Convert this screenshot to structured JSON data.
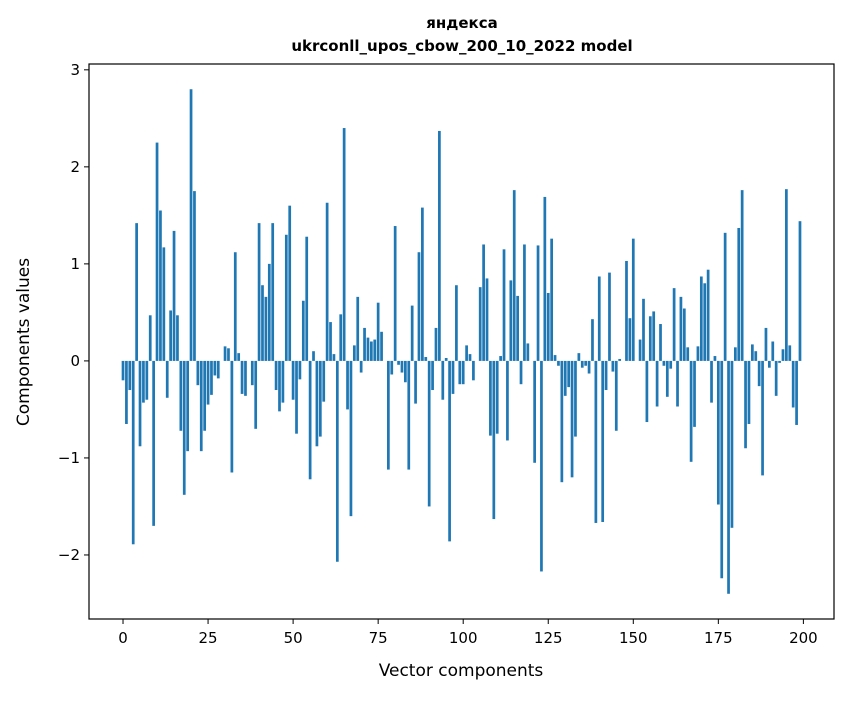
{
  "chart_data": {
    "type": "bar",
    "title": "яндекса",
    "subtitle": "ukrconll_upos_cbow_200_10_2022 model",
    "xlabel": "Vector components",
    "ylabel": "Components values",
    "xlim": [
      -10,
      209
    ],
    "ylim": [
      -2.66,
      3.06
    ],
    "xticks": [
      0,
      25,
      50,
      75,
      100,
      125,
      150,
      175,
      200
    ],
    "yticks": [
      -2,
      -1,
      0,
      1,
      2,
      3
    ],
    "xtick_labels": [
      "0",
      "25",
      "50",
      "75",
      "100",
      "125",
      "150",
      "175",
      "200"
    ],
    "ytick_labels": [
      "−2",
      "−1",
      "0",
      "1",
      "2",
      "3"
    ],
    "grid": false,
    "legend": "none",
    "bar_color": "#1f77b4",
    "x": [
      0,
      1,
      2,
      3,
      4,
      5,
      6,
      7,
      8,
      9,
      10,
      11,
      12,
      13,
      14,
      15,
      16,
      17,
      18,
      19,
      20,
      21,
      22,
      23,
      24,
      25,
      26,
      27,
      28,
      29,
      30,
      31,
      32,
      33,
      34,
      35,
      36,
      37,
      38,
      39,
      40,
      41,
      42,
      43,
      44,
      45,
      46,
      47,
      48,
      49,
      50,
      51,
      52,
      53,
      54,
      55,
      56,
      57,
      58,
      59,
      60,
      61,
      62,
      63,
      64,
      65,
      66,
      67,
      68,
      69,
      70,
      71,
      72,
      73,
      74,
      75,
      76,
      77,
      78,
      79,
      80,
      81,
      82,
      83,
      84,
      85,
      86,
      87,
      88,
      89,
      90,
      91,
      92,
      93,
      94,
      95,
      96,
      97,
      98,
      99,
      100,
      101,
      102,
      103,
      104,
      105,
      106,
      107,
      108,
      109,
      110,
      111,
      112,
      113,
      114,
      115,
      116,
      117,
      118,
      119,
      120,
      121,
      122,
      123,
      124,
      125,
      126,
      127,
      128,
      129,
      130,
      131,
      132,
      133,
      134,
      135,
      136,
      137,
      138,
      139,
      140,
      141,
      142,
      143,
      144,
      145,
      146,
      147,
      148,
      149,
      150,
      151,
      152,
      153,
      154,
      155,
      156,
      157,
      158,
      159,
      160,
      161,
      162,
      163,
      164,
      165,
      166,
      167,
      168,
      169,
      170,
      171,
      172,
      173,
      174,
      175,
      176,
      177,
      178,
      179,
      180,
      181,
      182,
      183,
      184,
      185,
      186,
      187,
      188,
      189,
      190,
      191,
      192,
      193,
      194,
      195,
      196,
      197,
      198,
      199
    ],
    "values": [
      -0.2,
      -0.65,
      -0.3,
      -1.89,
      1.42,
      -0.88,
      -0.43,
      -0.4,
      0.47,
      -1.7,
      2.25,
      1.55,
      1.17,
      -0.38,
      0.52,
      1.34,
      0.47,
      -0.72,
      -1.38,
      -0.93,
      2.8,
      1.75,
      -0.25,
      -0.93,
      -0.72,
      -0.45,
      -0.35,
      -0.15,
      -0.18,
      0.0,
      0.15,
      0.13,
      -1.15,
      1.12,
      0.08,
      -0.34,
      -0.36,
      0.0,
      -0.25,
      -0.7,
      1.42,
      0.78,
      0.66,
      1.0,
      1.42,
      -0.3,
      -0.52,
      -0.43,
      1.3,
      1.6,
      -0.4,
      -0.75,
      -0.19,
      0.62,
      1.28,
      -1.22,
      0.1,
      -0.88,
      -0.78,
      -0.42,
      1.63,
      0.4,
      0.07,
      -2.07,
      0.48,
      2.4,
      -0.5,
      -1.6,
      0.16,
      0.66,
      -0.12,
      0.34,
      0.24,
      0.2,
      0.22,
      0.6,
      0.3,
      0.0,
      -1.12,
      -0.14,
      1.39,
      -0.04,
      -0.12,
      -0.22,
      -1.12,
      0.57,
      -0.44,
      1.12,
      1.58,
      0.04,
      -1.5,
      -0.3,
      0.34,
      2.37,
      -0.4,
      0.03,
      -1.86,
      -0.34,
      0.78,
      -0.24,
      -0.24,
      0.16,
      0.07,
      -0.2,
      0.0,
      0.76,
      1.2,
      0.85,
      -0.77,
      -1.63,
      -0.75,
      0.05,
      1.15,
      -0.82,
      0.83,
      1.76,
      0.67,
      -0.24,
      1.2,
      0.18,
      0.0,
      -1.05,
      1.19,
      -2.17,
      1.69,
      0.7,
      1.26,
      0.06,
      -0.05,
      -1.25,
      -0.36,
      -0.27,
      -1.2,
      -0.78,
      0.08,
      -0.07,
      -0.05,
      -0.13,
      0.43,
      -1.67,
      0.87,
      -1.66,
      -0.3,
      0.91,
      -0.11,
      -0.72,
      0.02,
      0.0,
      1.03,
      0.44,
      1.26,
      0.0,
      0.22,
      0.64,
      -0.63,
      0.46,
      0.51,
      -0.47,
      0.38,
      -0.05,
      -0.37,
      -0.08,
      0.75,
      -0.47,
      0.66,
      0.54,
      0.14,
      -1.04,
      -0.68,
      0.15,
      0.87,
      0.8,
      0.94,
      -0.43,
      0.05,
      -1.48,
      -2.24,
      1.32,
      -2.4,
      -1.72,
      0.14,
      1.37,
      1.76,
      -0.9,
      -0.65,
      0.17,
      0.1,
      -0.26,
      -1.18,
      0.34,
      -0.07,
      0.2,
      -0.36,
      -0.02,
      0.12,
      1.77,
      0.16,
      -0.48,
      -0.66,
      1.44
    ]
  }
}
